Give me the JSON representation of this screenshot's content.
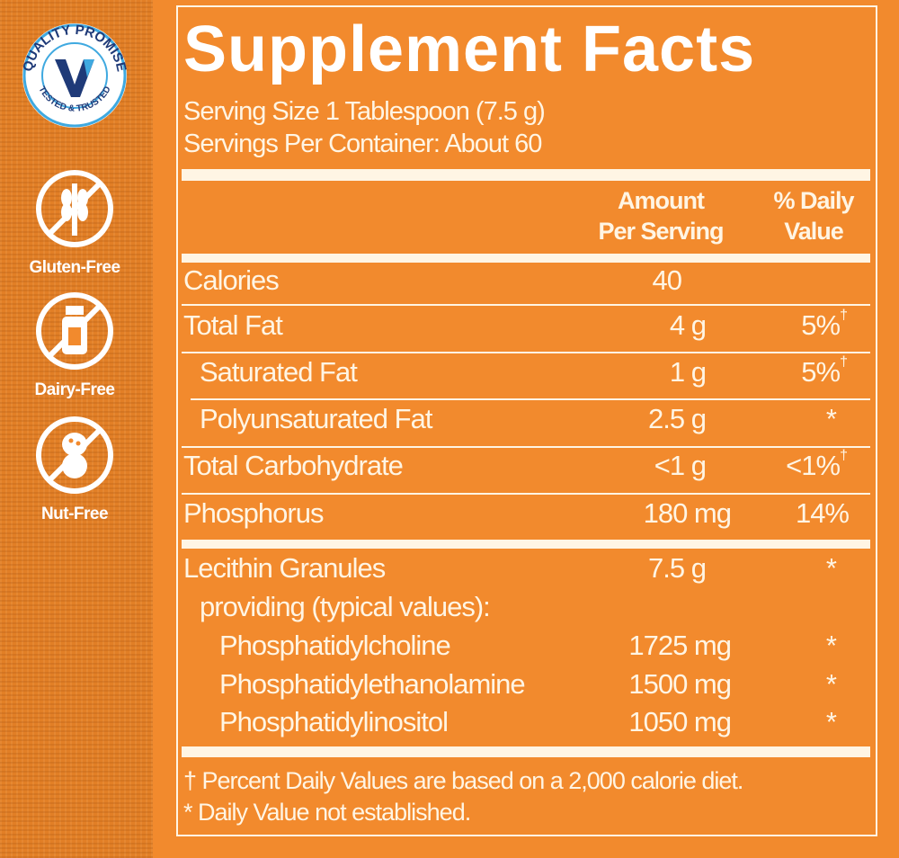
{
  "badges": {
    "quality": {
      "top": "QUALITY PROMISE",
      "bottom": "TESTED & TRUSTED",
      "registered": "®"
    },
    "items": [
      {
        "label": "Gluten-Free",
        "icon": "wheat-crossed-icon"
      },
      {
        "label": "Dairy-Free",
        "icon": "milk-bottle-crossed-icon"
      },
      {
        "label": "Nut-Free",
        "icon": "peanut-crossed-icon"
      }
    ]
  },
  "facts": {
    "title": "Supplement Facts",
    "serving_size": "Serving Size 1 Tablespoon (7.5 g)",
    "servings_per_container": "Servings Per Container: About 60",
    "header": {
      "amount_1": "Amount",
      "amount_2": "Per Serving",
      "dv_1": "% Daily",
      "dv_2": "Value"
    },
    "rows": [
      {
        "name": "Calories",
        "amount": "40",
        "dv": ""
      },
      {
        "name": "Total Fat",
        "amount": "4 g",
        "dv": "5%",
        "mark": "†"
      },
      {
        "name": "Saturated Fat",
        "amount": "1 g",
        "dv": "5%",
        "mark": "†"
      },
      {
        "name": "Polyunsaturated Fat",
        "amount": "2.5 g",
        "dv": "*"
      },
      {
        "name": "Total Carbohydrate",
        "amount": "<1 g",
        "dv": "<1%",
        "mark": "†"
      },
      {
        "name": "Phosphorus",
        "amount": "180 mg",
        "dv": "14%"
      },
      {
        "name": "Lecithin Granules",
        "amount": "7.5 g",
        "dv": "*"
      },
      {
        "name": "providing (typical values):"
      },
      {
        "name": "Phosphatidylcholine",
        "amount": "1725 mg",
        "dv": "*"
      },
      {
        "name": "Phosphatidylethanolamine",
        "amount": "1500 mg",
        "dv": "*"
      },
      {
        "name": "Phosphatidylinositol",
        "amount": "1050 mg",
        "dv": "*"
      }
    ],
    "footnote_1": "† Percent Daily Values are based on a 2,000 calorie diet.",
    "footnote_2": "* Daily Value not established."
  },
  "colors": {
    "background": "#F28A2D",
    "text": "#FFF5E4",
    "seal_blue": "#1F3A78",
    "seal_light_blue": "#3FA9E0"
  }
}
